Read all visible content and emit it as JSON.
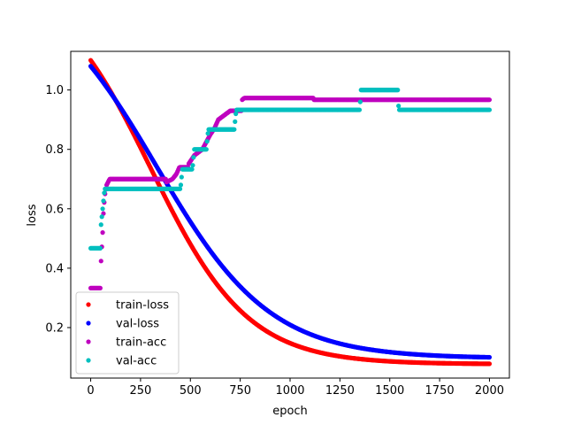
{
  "chart_data": {
    "type": "scatter",
    "xlabel": "epoch",
    "ylabel": "loss",
    "xlim": [
      -100,
      2100
    ],
    "ylim": [
      0.03,
      1.13
    ],
    "xticks": [
      0,
      250,
      500,
      750,
      1000,
      1250,
      1500,
      1750,
      2000
    ],
    "yticks": [
      0.2,
      0.4,
      0.6,
      0.8,
      1.0
    ],
    "grid": false,
    "legend_position": "lower-left",
    "series": [
      {
        "name": "train-loss",
        "color": "#ff0000",
        "model": {
          "kind": "loss",
          "start": 1.1,
          "end": 0.078,
          "decay": 0.00205,
          "mid": 300
        },
        "points": [
          [
            0,
            1.1
          ],
          [
            100,
            1.03
          ],
          [
            200,
            0.93
          ],
          [
            300,
            0.8
          ],
          [
            400,
            0.67
          ],
          [
            500,
            0.57
          ],
          [
            600,
            0.48
          ],
          [
            750,
            0.38
          ],
          [
            1000,
            0.26
          ],
          [
            1250,
            0.18
          ],
          [
            1500,
            0.13
          ],
          [
            1750,
            0.1
          ],
          [
            2000,
            0.078
          ]
        ]
      },
      {
        "name": "val-loss",
        "color": "#0000ff",
        "model": {
          "kind": "loss",
          "start": 1.08,
          "end": 0.1,
          "decay": 0.00175,
          "mid": 330
        },
        "points": [
          [
            0,
            1.08
          ],
          [
            100,
            1.02
          ],
          [
            200,
            0.93
          ],
          [
            300,
            0.82
          ],
          [
            400,
            0.72
          ],
          [
            500,
            0.62
          ],
          [
            600,
            0.54
          ],
          [
            750,
            0.44
          ],
          [
            1000,
            0.32
          ],
          [
            1250,
            0.23
          ],
          [
            1500,
            0.16
          ],
          [
            1750,
            0.13
          ],
          [
            2000,
            0.1
          ]
        ]
      },
      {
        "name": "train-acc",
        "color": "#bf00bf",
        "steps": [
          [
            0,
            0.333
          ],
          [
            50,
            0.4
          ],
          [
            60,
            0.52
          ],
          [
            65,
            0.6
          ],
          [
            72,
            0.65
          ],
          [
            80,
            0.68
          ],
          [
            95,
            0.7
          ],
          [
            380,
            0.69
          ],
          [
            410,
            0.7
          ],
          [
            430,
            0.717
          ],
          [
            445,
            0.74
          ],
          [
            490,
            0.75
          ],
          [
            520,
            0.78
          ],
          [
            560,
            0.8
          ],
          [
            600,
            0.85
          ],
          [
            620,
            0.87
          ],
          [
            640,
            0.9
          ],
          [
            660,
            0.91
          ],
          [
            700,
            0.93
          ],
          [
            760,
            0.967
          ],
          [
            770,
            0.973
          ],
          [
            1120,
            0.967
          ],
          [
            2000,
            0.967
          ]
        ]
      },
      {
        "name": "val-acc",
        "color": "#00bfbf",
        "steps": [
          [
            0,
            0.467
          ],
          [
            50,
            0.533
          ],
          [
            70,
            0.667
          ],
          [
            450,
            0.667
          ],
          [
            460,
            0.733
          ],
          [
            510,
            0.733
          ],
          [
            520,
            0.8
          ],
          [
            580,
            0.8
          ],
          [
            590,
            0.867
          ],
          [
            720,
            0.867
          ],
          [
            730,
            0.933
          ],
          [
            1350,
            0.933
          ],
          [
            1355,
            1.0
          ],
          [
            1540,
            1.0
          ],
          [
            1545,
            0.933
          ],
          [
            2000,
            0.933
          ]
        ]
      }
    ]
  }
}
